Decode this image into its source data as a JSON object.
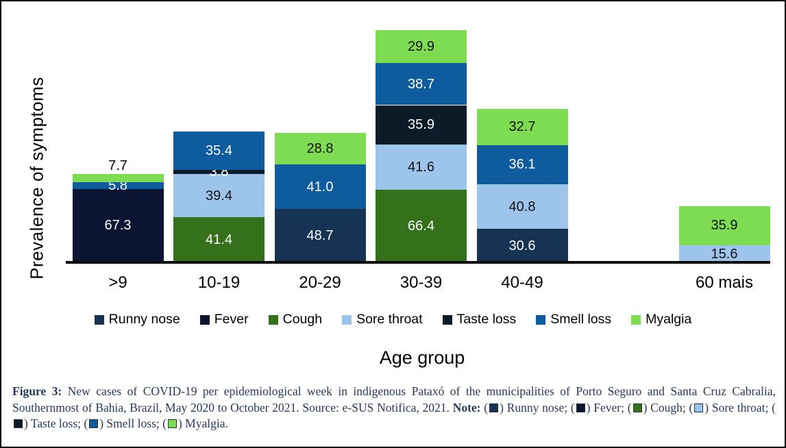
{
  "figure": {
    "y_axis_label": "Prevalence of symptoms",
    "x_axis_label": "Age group"
  },
  "chart_data": {
    "type": "bar",
    "stacked": true,
    "title": "",
    "xlabel": "Age group",
    "ylabel": "Prevalence of symptoms",
    "ylim": [
      0,
      235
    ],
    "grid": false,
    "legend_position": "bottom",
    "categories": [
      ">9",
      "10-19",
      "20-29",
      "30-39",
      "40-49",
      "60 mais"
    ],
    "slots": [
      0,
      1,
      2,
      3,
      4,
      6
    ],
    "total_slots": 7,
    "series": [
      {
        "name": "Runny nose",
        "color": "#163353",
        "label_color": "#ffffff",
        "values": [
          0,
          0,
          48.7,
          0,
          30.6,
          0
        ]
      },
      {
        "name": "Fever",
        "color": "#0b1432",
        "label_color": "#ffffff",
        "values": [
          67.3,
          0,
          0,
          0,
          0,
          0
        ]
      },
      {
        "name": "Cough",
        "color": "#35701a",
        "label_color": "#ffffff",
        "values": [
          0,
          41.4,
          0,
          66.4,
          0,
          0
        ]
      },
      {
        "name": "Sore throat",
        "color": "#9dc5eb",
        "label_color": "#111111",
        "values": [
          0,
          39.4,
          0,
          41.6,
          40.8,
          15.6
        ]
      },
      {
        "name": "Taste loss",
        "color": "#0c1b28",
        "label_color": "#ffffff",
        "values": [
          0,
          3.8,
          0,
          35.9,
          0,
          0
        ]
      },
      {
        "name": "Smell loss",
        "color": "#0e5c9e",
        "label_color": "#ffffff",
        "values": [
          5.8,
          35.4,
          41.0,
          38.7,
          36.1,
          0
        ]
      },
      {
        "name": "Myalgia",
        "color": "#7edc52",
        "label_color": "#111111",
        "values": [
          7.7,
          0,
          28.8,
          29.9,
          32.7,
          35.9
        ]
      }
    ]
  },
  "caption": {
    "parts": [
      {
        "b": "Figure 3:"
      },
      {
        "t": " New cases of COVID-19 per epidemiological week in indigenous Pataxó of the municipalities of Porto Seguro and Santa Cruz Cabralia, Southernmost of Bahia, Brazil, May 2020 to October 2021. Source: e-SUS Notifica, 2021. "
      },
      {
        "b": "Note:"
      },
      {
        "t": " ("
      },
      {
        "sw": "Runny nose"
      },
      {
        "t": ") Runny nose; ("
      },
      {
        "sw": "Fever"
      },
      {
        "t": ") Fever; ("
      },
      {
        "sw": "Cough"
      },
      {
        "t": ") Cough; ("
      },
      {
        "sw": "Sore throat"
      },
      {
        "t": ") Sore throat; ("
      },
      {
        "sw": "Taste loss"
      },
      {
        "t": ") Taste loss; ("
      },
      {
        "sw": "Smell loss"
      },
      {
        "t": ") Smell loss; ("
      },
      {
        "sw": "Myalgia"
      },
      {
        "t": ") Myalgia."
      }
    ]
  }
}
